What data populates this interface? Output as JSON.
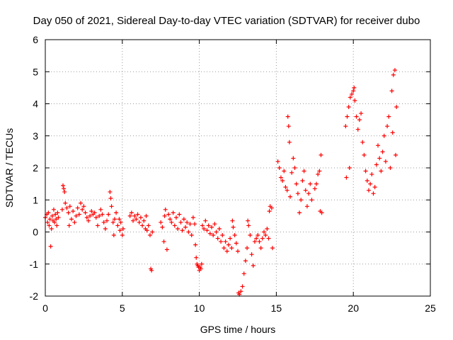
{
  "chart_data": {
    "type": "scatter",
    "title": "Day 050 of 2021, Sidereal Day-to-day VTEC variation (SDTVAR) for receiver dubo",
    "xlabel": "GPS time / hours",
    "ylabel": "SDTVAR / TECUs",
    "xlim": [
      0,
      25
    ],
    "ylim": [
      -2,
      6
    ],
    "xticks": [
      0,
      5,
      10,
      15,
      20,
      25
    ],
    "yticks": [
      -2,
      -1,
      0,
      1,
      2,
      3,
      4,
      5,
      6
    ],
    "grid": true,
    "marker": "+",
    "series_color": "#ff0000",
    "series": [
      {
        "name": "SDTVAR",
        "points": [
          [
            0.0,
            0.45
          ],
          [
            0.1,
            0.55
          ],
          [
            0.15,
            0.3
          ],
          [
            0.2,
            0.6
          ],
          [
            0.25,
            0.2
          ],
          [
            0.3,
            0.4
          ],
          [
            0.35,
            -0.45
          ],
          [
            0.4,
            0.1
          ],
          [
            0.45,
            0.5
          ],
          [
            0.5,
            0.35
          ],
          [
            0.55,
            0.7
          ],
          [
            0.6,
            0.3
          ],
          [
            0.65,
            0.55
          ],
          [
            0.7,
            0.4
          ],
          [
            0.75,
            0.2
          ],
          [
            0.8,
            0.6
          ],
          [
            0.85,
            0.45
          ],
          [
            1.1,
            0.7
          ],
          [
            1.15,
            1.45
          ],
          [
            1.2,
            1.35
          ],
          [
            1.25,
            1.25
          ],
          [
            1.3,
            0.9
          ],
          [
            1.4,
            0.75
          ],
          [
            1.5,
            0.6
          ],
          [
            1.55,
            0.2
          ],
          [
            1.6,
            0.8
          ],
          [
            1.7,
            0.4
          ],
          [
            1.8,
            0.65
          ],
          [
            1.9,
            0.3
          ],
          [
            2.0,
            0.5
          ],
          [
            2.1,
            0.75
          ],
          [
            2.2,
            0.55
          ],
          [
            2.3,
            0.9
          ],
          [
            2.4,
            0.7
          ],
          [
            2.5,
            0.8
          ],
          [
            2.6,
            0.6
          ],
          [
            2.7,
            0.45
          ],
          [
            2.8,
            0.35
          ],
          [
            2.9,
            0.5
          ],
          [
            3.0,
            0.65
          ],
          [
            3.1,
            0.55
          ],
          [
            3.2,
            0.6
          ],
          [
            3.3,
            0.45
          ],
          [
            3.4,
            0.2
          ],
          [
            3.5,
            0.5
          ],
          [
            3.6,
            0.7
          ],
          [
            3.7,
            0.55
          ],
          [
            3.8,
            0.3
          ],
          [
            3.9,
            0.1
          ],
          [
            4.0,
            0.35
          ],
          [
            4.1,
            0.55
          ],
          [
            4.2,
            1.25
          ],
          [
            4.25,
            1.05
          ],
          [
            4.3,
            0.8
          ],
          [
            4.4,
            0.3
          ],
          [
            4.45,
            -0.1
          ],
          [
            4.5,
            0.4
          ],
          [
            4.6,
            0.6
          ],
          [
            4.7,
            0.2
          ],
          [
            4.8,
            0.4
          ],
          [
            4.85,
            0.05
          ],
          [
            4.9,
            0.3
          ],
          [
            5.0,
            -0.1
          ],
          [
            5.05,
            0.1
          ],
          [
            5.5,
            0.5
          ],
          [
            5.6,
            0.6
          ],
          [
            5.7,
            0.35
          ],
          [
            5.8,
            0.5
          ],
          [
            5.9,
            0.4
          ],
          [
            6.0,
            0.55
          ],
          [
            6.1,
            0.3
          ],
          [
            6.2,
            0.45
          ],
          [
            6.3,
            0.2
          ],
          [
            6.4,
            0.35
          ],
          [
            6.5,
            0.1
          ],
          [
            6.55,
            0.5
          ],
          [
            6.6,
            0.05
          ],
          [
            6.7,
            0.2
          ],
          [
            6.8,
            -0.1
          ],
          [
            6.85,
            -1.15
          ],
          [
            6.9,
            -1.2
          ],
          [
            6.95,
            0.0
          ],
          [
            7.5,
            0.3
          ],
          [
            7.6,
            0.15
          ],
          [
            7.7,
            -0.3
          ],
          [
            7.75,
            0.5
          ],
          [
            7.8,
            0.7
          ],
          [
            7.9,
            -0.55
          ],
          [
            8.0,
            0.55
          ],
          [
            8.1,
            0.4
          ],
          [
            8.2,
            0.3
          ],
          [
            8.3,
            0.6
          ],
          [
            8.4,
            0.2
          ],
          [
            8.5,
            0.45
          ],
          [
            8.6,
            0.1
          ],
          [
            8.7,
            0.55
          ],
          [
            8.8,
            0.3
          ],
          [
            8.9,
            0.05
          ],
          [
            9.0,
            0.4
          ],
          [
            9.1,
            0.15
          ],
          [
            9.2,
            0.3
          ],
          [
            9.3,
            0.0
          ],
          [
            9.4,
            0.25
          ],
          [
            9.5,
            -0.1
          ],
          [
            9.6,
            0.45
          ],
          [
            9.7,
            0.25
          ],
          [
            9.75,
            -0.4
          ],
          [
            9.8,
            -0.8
          ],
          [
            9.85,
            -1.0
          ],
          [
            9.9,
            -1.05
          ],
          [
            9.95,
            -1.1
          ],
          [
            10.0,
            -1.2
          ],
          [
            10.05,
            -1.1
          ],
          [
            10.1,
            -1.15
          ],
          [
            10.15,
            -1.0
          ],
          [
            10.2,
            0.2
          ],
          [
            10.3,
            0.1
          ],
          [
            10.4,
            0.35
          ],
          [
            10.5,
            0.05
          ],
          [
            10.6,
            0.2
          ],
          [
            10.7,
            -0.05
          ],
          [
            10.8,
            0.15
          ],
          [
            10.9,
            -0.1
          ],
          [
            11.0,
            0.25
          ],
          [
            11.1,
            0.0
          ],
          [
            11.2,
            -0.2
          ],
          [
            11.3,
            0.1
          ],
          [
            11.4,
            -0.3
          ],
          [
            11.5,
            -0.1
          ],
          [
            11.6,
            -0.5
          ],
          [
            11.7,
            -0.3
          ],
          [
            11.8,
            -0.6
          ],
          [
            11.9,
            -0.4
          ],
          [
            12.0,
            -0.2
          ],
          [
            12.1,
            -0.5
          ],
          [
            12.15,
            0.35
          ],
          [
            12.2,
            0.15
          ],
          [
            12.3,
            -0.1
          ],
          [
            12.4,
            -0.35
          ],
          [
            12.5,
            -0.6
          ],
          [
            12.55,
            -1.9
          ],
          [
            12.6,
            -1.95
          ],
          [
            12.7,
            -1.85
          ],
          [
            12.8,
            -1.7
          ],
          [
            12.9,
            -1.3
          ],
          [
            13.0,
            -0.9
          ],
          [
            13.1,
            -0.5
          ],
          [
            13.15,
            0.35
          ],
          [
            13.2,
            0.2
          ],
          [
            13.3,
            -0.1
          ],
          [
            13.4,
            -0.7
          ],
          [
            13.5,
            -1.05
          ],
          [
            13.6,
            -0.3
          ],
          [
            13.7,
            -0.2
          ],
          [
            13.8,
            -0.1
          ],
          [
            13.9,
            -0.3
          ],
          [
            14.0,
            -0.5
          ],
          [
            14.1,
            -0.2
          ],
          [
            14.2,
            0.0
          ],
          [
            14.3,
            -0.1
          ],
          [
            14.4,
            0.1
          ],
          [
            14.5,
            -0.2
          ],
          [
            14.55,
            0.65
          ],
          [
            14.6,
            0.8
          ],
          [
            14.7,
            0.75
          ],
          [
            14.75,
            -0.5
          ],
          [
            15.1,
            2.2
          ],
          [
            15.2,
            2.0
          ],
          [
            15.3,
            1.7
          ],
          [
            15.4,
            1.6
          ],
          [
            15.5,
            1.9
          ],
          [
            15.6,
            1.4
          ],
          [
            15.7,
            1.3
          ],
          [
            15.75,
            3.6
          ],
          [
            15.8,
            3.3
          ],
          [
            15.85,
            2.8
          ],
          [
            15.9,
            1.1
          ],
          [
            16.0,
            1.85
          ],
          [
            16.1,
            2.3
          ],
          [
            16.2,
            2.0
          ],
          [
            16.3,
            1.5
          ],
          [
            16.4,
            1.2
          ],
          [
            16.5,
            0.6
          ],
          [
            16.6,
            1.0
          ],
          [
            16.7,
            1.6
          ],
          [
            16.8,
            1.9
          ],
          [
            16.9,
            1.3
          ],
          [
            17.0,
            0.8
          ],
          [
            17.1,
            1.2
          ],
          [
            17.2,
            1.5
          ],
          [
            17.3,
            1.0
          ],
          [
            17.5,
            1.35
          ],
          [
            17.6,
            1.5
          ],
          [
            17.7,
            1.8
          ],
          [
            17.8,
            1.9
          ],
          [
            17.85,
            0.65
          ],
          [
            17.9,
            2.4
          ],
          [
            17.95,
            0.6
          ],
          [
            19.5,
            3.3
          ],
          [
            19.55,
            1.7
          ],
          [
            19.6,
            3.6
          ],
          [
            19.7,
            3.9
          ],
          [
            19.75,
            2.0
          ],
          [
            19.8,
            4.2
          ],
          [
            19.9,
            4.3
          ],
          [
            20.0,
            4.4
          ],
          [
            20.05,
            4.5
          ],
          [
            20.1,
            4.1
          ],
          [
            20.2,
            3.6
          ],
          [
            20.3,
            3.2
          ],
          [
            20.4,
            3.5
          ],
          [
            20.5,
            3.7
          ],
          [
            20.6,
            2.8
          ],
          [
            20.7,
            2.4
          ],
          [
            20.8,
            1.9
          ],
          [
            20.9,
            1.6
          ],
          [
            21.0,
            1.3
          ],
          [
            21.1,
            1.5
          ],
          [
            21.2,
            1.8
          ],
          [
            21.3,
            1.2
          ],
          [
            21.4,
            1.4
          ],
          [
            21.5,
            2.1
          ],
          [
            21.6,
            2.7
          ],
          [
            21.7,
            2.3
          ],
          [
            21.8,
            1.9
          ],
          [
            21.9,
            2.5
          ],
          [
            22.0,
            3.0
          ],
          [
            22.1,
            2.2
          ],
          [
            22.2,
            3.3
          ],
          [
            22.3,
            3.6
          ],
          [
            22.4,
            2.0
          ],
          [
            22.5,
            4.4
          ],
          [
            22.55,
            3.1
          ],
          [
            22.6,
            4.9
          ],
          [
            22.7,
            5.05
          ],
          [
            22.75,
            2.4
          ],
          [
            22.8,
            3.9
          ]
        ]
      }
    ]
  }
}
